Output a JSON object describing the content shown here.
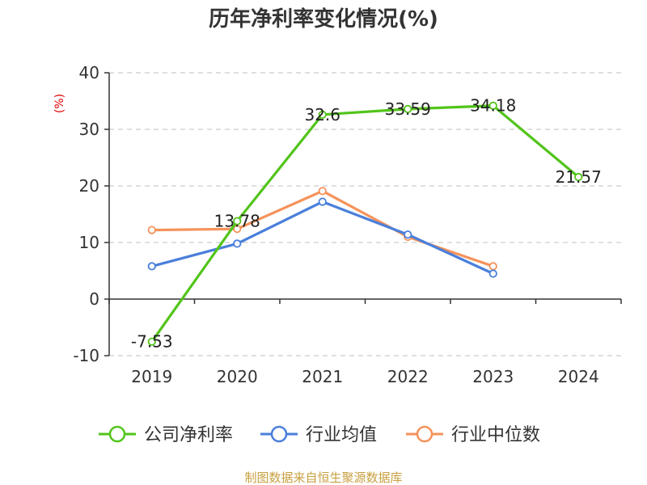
{
  "chart_data": {
    "type": "line",
    "title": "历年净利率变化情况(%)",
    "ylabel": "(%)",
    "xlabel": "",
    "categories": [
      "2019",
      "2020",
      "2021",
      "2022",
      "2023",
      "2024"
    ],
    "ylim": [
      -10,
      40
    ],
    "yticks": [
      40,
      30,
      20,
      10,
      0,
      -10
    ],
    "grid": true,
    "legend_position": "bottom",
    "series": [
      {
        "name": "公司净利率",
        "color": "#52c41a",
        "values": [
          -7.53,
          13.78,
          32.6,
          33.59,
          34.18,
          21.57
        ],
        "labels": [
          "-7.53",
          "13.78",
          "32.6",
          "33.59",
          "34.18",
          "21.57"
        ]
      },
      {
        "name": "行业均值",
        "color": "#4a7fdb",
        "values": [
          5.8,
          9.8,
          17.2,
          11.4,
          4.5,
          null
        ]
      },
      {
        "name": "行业中位数",
        "color": "#f5925a",
        "values": [
          12.2,
          12.4,
          19.1,
          11.0,
          5.8,
          null
        ]
      }
    ]
  },
  "source": "制图数据来自恒生聚源数据库"
}
